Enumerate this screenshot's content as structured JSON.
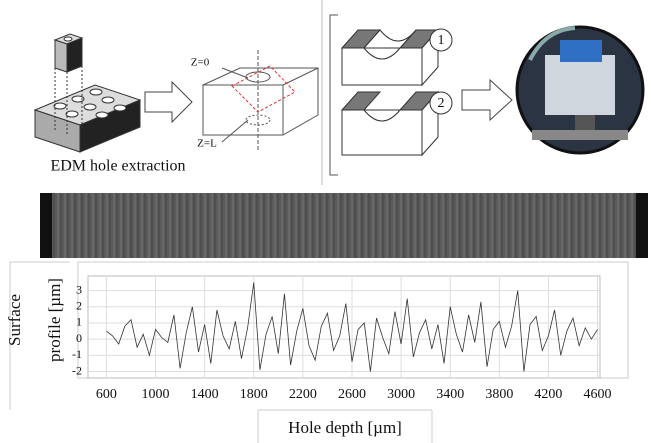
{
  "diagram": {
    "caption": "EDM hole extraction",
    "z_top": "Z=0",
    "z_bottom": "Z=L",
    "step_1": "1",
    "step_2": "2"
  },
  "chart_data": {
    "type": "line",
    "y_label": [
      "Surface",
      "profile [µm]"
    ],
    "x_label": "Hole depth [µm]",
    "x": [
      600,
      650,
      700,
      750,
      800,
      850,
      900,
      950,
      1000,
      1050,
      1100,
      1150,
      1200,
      1250,
      1300,
      1350,
      1400,
      1450,
      1500,
      1550,
      1600,
      1650,
      1700,
      1750,
      1800,
      1850,
      1900,
      1950,
      2000,
      2050,
      2100,
      2150,
      2200,
      2250,
      2300,
      2350,
      2400,
      2450,
      2500,
      2550,
      2600,
      2650,
      2700,
      2750,
      2800,
      2850,
      2900,
      2950,
      3000,
      3050,
      3100,
      3150,
      3200,
      3250,
      3300,
      3350,
      3400,
      3450,
      3500,
      3550,
      3600,
      3650,
      3700,
      3750,
      3800,
      3850,
      3900,
      3950,
      4000,
      4050,
      4100,
      4150,
      4200,
      4250,
      4300,
      4350,
      4400,
      4450,
      4500,
      4550,
      4600
    ],
    "values": [
      0.5,
      0.2,
      -0.3,
      0.8,
      1.2,
      -0.5,
      0.3,
      -1.0,
      0.6,
      0.1,
      -0.2,
      1.5,
      -1.8,
      0.4,
      2.0,
      -0.8,
      0.9,
      -1.5,
      1.8,
      0.2,
      -0.6,
      1.1,
      -1.2,
      0.7,
      3.5,
      -1.9,
      0.3,
      1.4,
      -0.9,
      2.8,
      -1.6,
      0.5,
      1.9,
      -0.4,
      -1.3,
      0.8,
      1.6,
      -0.7,
      0.2,
      2.2,
      -1.4,
      0.6,
      1.0,
      -2.0,
      1.3,
      0.1,
      -0.9,
      1.7,
      -0.3,
      2.5,
      -1.1,
      0.4,
      1.2,
      -0.6,
      0.9,
      -1.5,
      2.0,
      0.3,
      -0.8,
      1.5,
      -0.2,
      2.3,
      -1.7,
      0.6,
      1.1,
      -0.5,
      0.8,
      3.0,
      -2.0,
      0.9,
      1.4,
      -0.7,
      0.2,
      1.8,
      -1.0,
      0.5,
      1.3,
      -0.4,
      0.7,
      0.0,
      0.6
    ],
    "color": "#333333",
    "xlim": [
      450,
      4620
    ],
    "ylim": [
      -2.4,
      3.9
    ],
    "xticks": [
      600,
      1000,
      1400,
      1800,
      2200,
      2600,
      3000,
      3400,
      3800,
      4200,
      4600
    ],
    "yticks": [
      3,
      2,
      1,
      0,
      -1,
      -2
    ],
    "grid": true
  }
}
